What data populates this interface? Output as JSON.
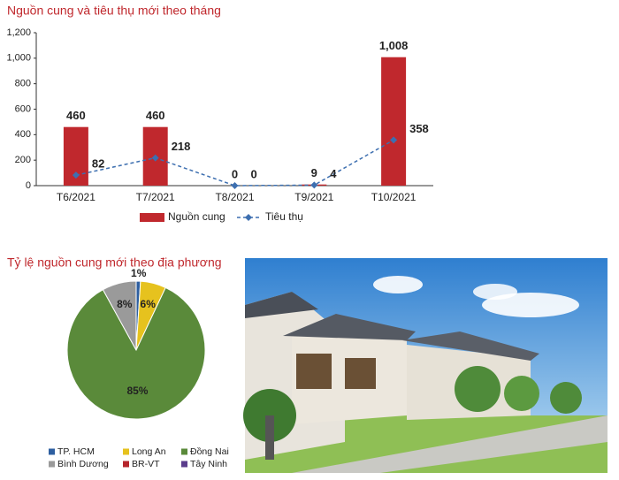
{
  "chart_data": [
    {
      "type": "bar",
      "title": "Nguồn cung và tiêu thụ mới theo tháng",
      "categories": [
        "T6/2021",
        "T7/2021",
        "T8/2021",
        "T9/2021",
        "T10/2021"
      ],
      "series": [
        {
          "name": "Nguồn cung",
          "color": "#c0282d",
          "values": [
            460,
            460,
            0,
            9,
            1008
          ],
          "value_labels": [
            "460",
            "460",
            "0",
            "9",
            "1,008"
          ]
        },
        {
          "name": "Tiêu thụ",
          "type": "line",
          "color": "#3d6fb0",
          "values": [
            82,
            218,
            0,
            4,
            358
          ]
        }
      ],
      "ylim": [
        0,
        1200
      ],
      "yticks": [
        0,
        200,
        400,
        600,
        800,
        {
          "value": 1000,
          "label": "1,000"
        },
        {
          "value": 1200,
          "label": "1,200"
        }
      ],
      "grid": false,
      "legend": "bottom"
    },
    {
      "type": "pie",
      "title": "Tỷ lệ nguồn cung mới theo địa phương",
      "categories": [
        "TP. HCM",
        "Long An",
        "Đồng Nai",
        "Bình Dương",
        "BR-VT",
        "Tây Ninh"
      ],
      "values": [
        1,
        6,
        85,
        8,
        0,
        0
      ],
      "value_labels": [
        "1%",
        "6%",
        "85%",
        "8%",
        null,
        null
      ],
      "colors": [
        "#2e5fa0",
        "#e6c21e",
        "#5a8a3a",
        "#9a9a9a",
        "#b5242b",
        "#5b3d8c"
      ],
      "legend": "bottom"
    }
  ]
}
